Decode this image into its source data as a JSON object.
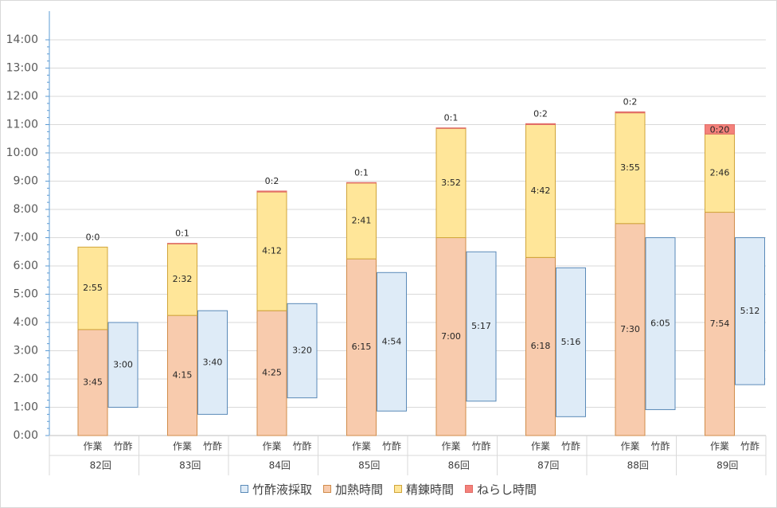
{
  "chart_data": {
    "type": "bar",
    "subtype": "stacked-bar-with-floating-range",
    "ylim": [
      "0:00",
      "14:00"
    ],
    "y_ticks": [
      "0:00",
      "1:00",
      "2:00",
      "3:00",
      "4:00",
      "5:00",
      "6:00",
      "7:00",
      "8:00",
      "9:00",
      "10:00",
      "11:00",
      "12:00",
      "13:00",
      "14:00"
    ],
    "grid": true,
    "legend_position": "bottom",
    "bar_labels": [
      "作業",
      "竹酢"
    ],
    "groups": [
      {
        "label": "82回",
        "work": {
          "加熱時間": "3:45",
          "精錬時間": "2:55",
          "ねらし時間": "0:0"
        },
        "vinegar": {
          "start": "1:00",
          "duration": "3:00"
        }
      },
      {
        "label": "83回",
        "work": {
          "加熱時間": "4:15",
          "精錬時間": "2:32",
          "ねらし時間": "0:1"
        },
        "vinegar": {
          "start": "0:45",
          "duration": "3:40"
        }
      },
      {
        "label": "84回",
        "work": {
          "加熱時間": "4:25",
          "精錬時間": "4:12",
          "ねらし時間": "0:2"
        },
        "vinegar": {
          "start": "1:20",
          "duration": "3:20"
        }
      },
      {
        "label": "85回",
        "work": {
          "加熱時間": "6:15",
          "精錬時間": "2:41",
          "ねらし時間": "0:1"
        },
        "vinegar": {
          "start": "0:52",
          "duration": "4:54"
        }
      },
      {
        "label": "86回",
        "work": {
          "加熱時間": "7:00",
          "精錬時間": "3:52",
          "ねらし時間": "0:1"
        },
        "vinegar": {
          "start": "1:13",
          "duration": "5:17"
        }
      },
      {
        "label": "87回",
        "work": {
          "加熱時間": "6:18",
          "精錬時間": "4:42",
          "ねらし時間": "0:2"
        },
        "vinegar": {
          "start": "0:40",
          "duration": "5:16"
        }
      },
      {
        "label": "88回",
        "work": {
          "加熱時間": "7:30",
          "精錬時間": "3:55",
          "ねらし時間": "0:2"
        },
        "vinegar": {
          "start": "0:55",
          "duration": "6:05"
        }
      },
      {
        "label": "89回",
        "work": {
          "加熱時間": "7:54",
          "精錬時間": "2:46",
          "ねらし時間": "0:20"
        },
        "vinegar": {
          "start": "1:48",
          "duration": "5:12"
        }
      }
    ],
    "series": [
      {
        "name": "竹酢液採取",
        "color": "#deebf7",
        "stroke": "#5a8ab8"
      },
      {
        "name": "加熱時間",
        "color": "#f8cbad",
        "stroke": "#d08c4a"
      },
      {
        "name": "精錬時間",
        "color": "#ffe699",
        "stroke": "#d0a53a"
      },
      {
        "name": "ねらし時間",
        "color": "#f4817b",
        "stroke": "#e06c66"
      }
    ]
  }
}
